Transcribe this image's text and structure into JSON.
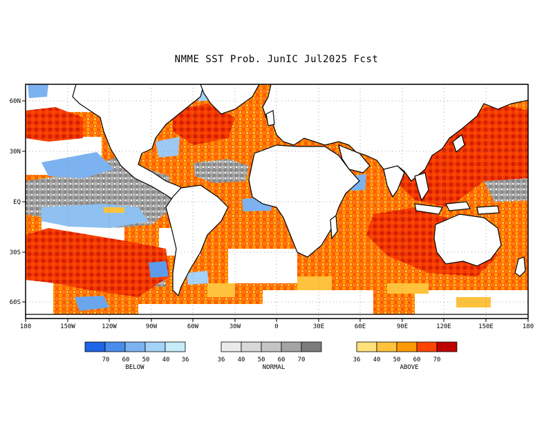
{
  "title": "NMME SST Prob. JunIC  Jul2025 Fcst",
  "map": {
    "projection": "cylindrical equidistant, 180 to 180",
    "background": "#ffffff",
    "land_color": "#ffffff",
    "coast_color": "#000000",
    "grid_style": "dotted",
    "x_labels": [
      "180",
      "150W",
      "120W",
      "90W",
      "60W",
      "30W",
      "0",
      "30E",
      "60E",
      "90E",
      "120E",
      "150E",
      "180"
    ],
    "y_labels": [
      "60N",
      "30N",
      "EQ",
      "30S",
      "60S"
    ]
  },
  "legends": [
    {
      "name": "BELOW",
      "colors": [
        "#1e64e6",
        "#4a8cec",
        "#7db2f0",
        "#a5d2f8",
        "#c6ecfa"
      ],
      "labels": [
        "70",
        "60",
        "50",
        "40",
        "36"
      ]
    },
    {
      "name": "NORMAL",
      "colors": [
        "#eaeaea",
        "#d8d8d8",
        "#c4c4c4",
        "#a4a4a4",
        "#7c7c7c"
      ],
      "labels": [
        "36",
        "40",
        "50",
        "60",
        "70"
      ]
    },
    {
      "name": "ABOVE",
      "colors": [
        "#ffe27a",
        "#ffc23c",
        "#ff9a00",
        "#ff4600",
        "#c00000"
      ],
      "labels": [
        "36",
        "40",
        "50",
        "60",
        "70"
      ]
    }
  ]
}
